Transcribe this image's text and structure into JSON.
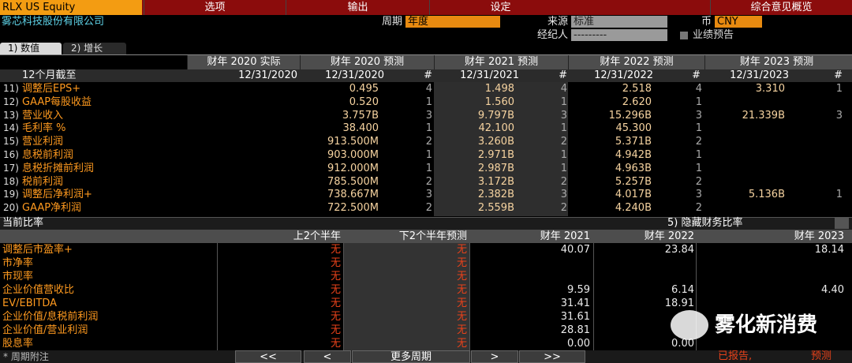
{
  "toolbar": {
    "ticker": "RLX US Equity",
    "menu": [
      "选项",
      "输出",
      "设定"
    ],
    "title": "综合意见概览"
  },
  "header": {
    "company": "雾芯科技股份有限公司",
    "period_label": "周期",
    "period": "年度",
    "source_label": "来源",
    "source": "标准",
    "currency_label": "币",
    "currency": "CNY",
    "broker_label": "经纪人",
    "broker": "---------",
    "preannounce": "业绩预告"
  },
  "tabs": [
    "1) 数值",
    "2) 增长"
  ],
  "estimates": {
    "columns": [
      "财年 2020 实际",
      "财年 2020 预测",
      "财年 2021 预测",
      "财年 2022 预测",
      "财年 2023 预测"
    ],
    "subheader": [
      "12个月截至",
      "12/31/2020",
      "12/31/2020",
      "#",
      "12/31/2021",
      "#",
      "12/31/2022",
      "#",
      "12/31/2023",
      "#"
    ],
    "rows": [
      {
        "no": "11)",
        "label": "调整后EPS+",
        "cells": [
          null,
          "0.495",
          "4",
          "1.498",
          "4",
          "2.518",
          "4",
          "3.310",
          "1"
        ]
      },
      {
        "no": "12)",
        "label": "GAAP每股收益",
        "cells": [
          null,
          "0.520",
          "1",
          "1.560",
          "1",
          "2.620",
          "1",
          null,
          null
        ]
      },
      {
        "no": "13)",
        "label": "营业收入",
        "cells": [
          null,
          "3.757B",
          "3",
          "9.797B",
          "3",
          "15.296B",
          "3",
          "21.339B",
          "3"
        ]
      },
      {
        "no": "14)",
        "label": "毛利率 %",
        "cells": [
          null,
          "38.400",
          "1",
          "42.100",
          "1",
          "45.300",
          "1",
          null,
          null
        ]
      },
      {
        "no": "15)",
        "label": "营业利润",
        "cells": [
          null,
          "913.500M",
          "2",
          "3.260B",
          "2",
          "5.371B",
          "2",
          null,
          null
        ]
      },
      {
        "no": "16)",
        "label": "息税前利润",
        "cells": [
          null,
          "903.000M",
          "1",
          "2.971B",
          "1",
          "4.942B",
          "1",
          null,
          null
        ]
      },
      {
        "no": "17)",
        "label": "息税折摊前利润",
        "cells": [
          null,
          "912.000M",
          "1",
          "2.987B",
          "1",
          "4.963B",
          "1",
          null,
          null
        ]
      },
      {
        "no": "18)",
        "label": "税前利润",
        "cells": [
          null,
          "785.500M",
          "2",
          "3.172B",
          "2",
          "5.257B",
          "2",
          null,
          null
        ]
      },
      {
        "no": "19)",
        "label": "调整后净利润+",
        "cells": [
          null,
          "738.667M",
          "3",
          "2.382B",
          "3",
          "4.017B",
          "3",
          "5.136B",
          "1"
        ]
      },
      {
        "no": "20)",
        "label": "GAAP净利润",
        "cells": [
          null,
          "722.500M",
          "2",
          "2.559B",
          "2",
          "4.240B",
          "2",
          null,
          null
        ]
      }
    ]
  },
  "ratios": {
    "title": "当前比率",
    "toggle": "5) 隐藏财务比率",
    "columns": [
      "上2个半年",
      "下2个半年预测",
      "财年 2021",
      "财年 2022",
      "财年 2023"
    ],
    "rows": [
      {
        "label": "调整后市盈率+",
        "cells": [
          "无",
          "无",
          "40.07",
          "23.84",
          "18.14"
        ]
      },
      {
        "label": "市净率",
        "cells": [
          "无",
          "无",
          null,
          null,
          null
        ]
      },
      {
        "label": "市现率",
        "cells": [
          "无",
          "无",
          null,
          null,
          null
        ]
      },
      {
        "label": "企业价值营收比",
        "cells": [
          "无",
          "无",
          "9.59",
          "6.14",
          "4.40"
        ]
      },
      {
        "label": "EV/EBITDA",
        "cells": [
          "无",
          "无",
          "31.41",
          "18.91",
          null
        ]
      },
      {
        "label": "企业价值/息税前利润",
        "cells": [
          "无",
          "无",
          "31.61",
          null,
          null
        ]
      },
      {
        "label": "企业价值/营业利润",
        "cells": [
          "无",
          "无",
          "28.81",
          null,
          null
        ]
      },
      {
        "label": "股息率",
        "cells": [
          "无",
          "无",
          "0.00",
          "0.00",
          null
        ]
      }
    ]
  },
  "footer": {
    "note": "* 周期附注",
    "buttons": [
      "<<",
      "<",
      "更多周期",
      ">",
      ">>"
    ],
    "reported": "已报告,",
    "forecast": "预测"
  },
  "watermark": "雾化新消费"
}
